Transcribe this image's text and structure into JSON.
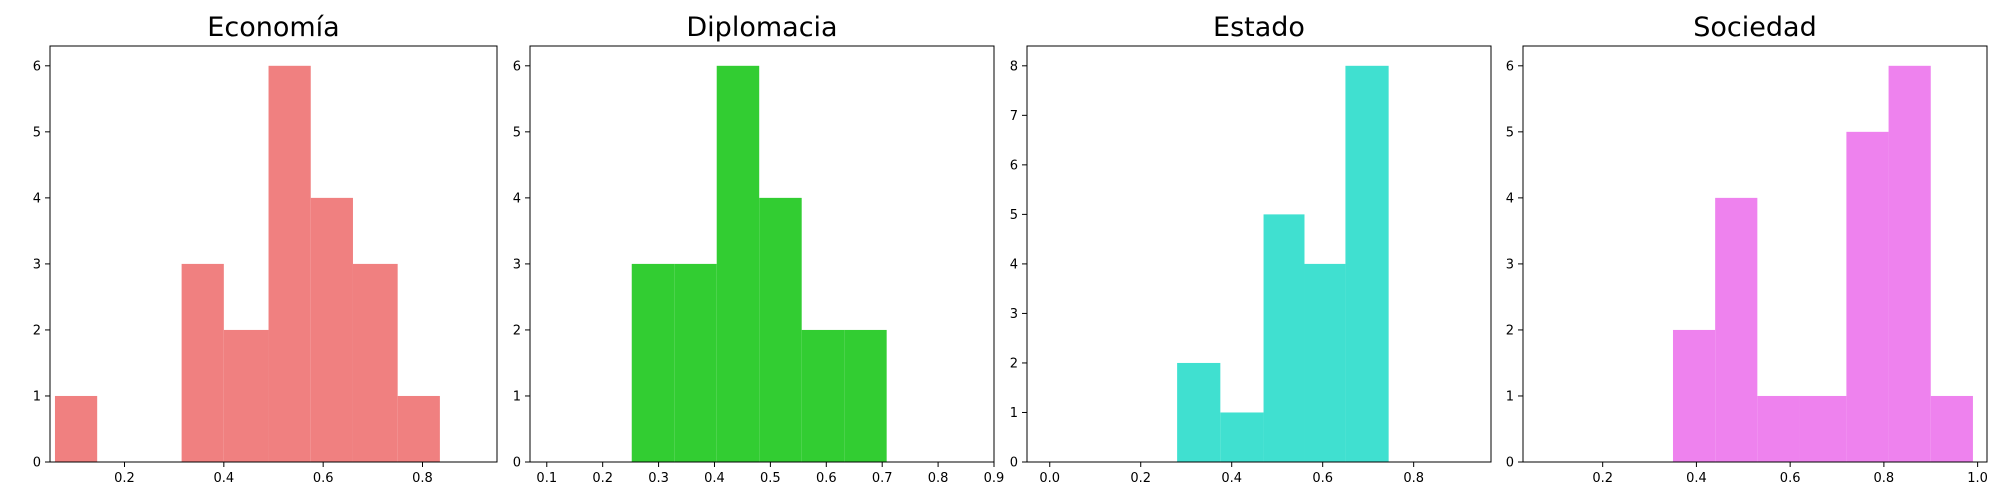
{
  "chart_data": [
    {
      "type": "bar",
      "title": "Economía",
      "color": "#f08080",
      "xlim": [
        0.05,
        0.95
      ],
      "ylim": [
        0,
        6.3
      ],
      "xticks": [
        0.2,
        0.4,
        0.6,
        0.8
      ],
      "yticks": [
        0,
        1,
        2,
        3,
        4,
        5,
        6
      ],
      "bins": [
        {
          "x0": 0.06,
          "x1": 0.145,
          "count": 1
        },
        {
          "x0": 0.145,
          "x1": 0.23,
          "count": 0
        },
        {
          "x0": 0.23,
          "x1": 0.315,
          "count": 0
        },
        {
          "x0": 0.315,
          "x1": 0.4,
          "count": 3
        },
        {
          "x0": 0.4,
          "x1": 0.49,
          "count": 2
        },
        {
          "x0": 0.49,
          "x1": 0.575,
          "count": 6
        },
        {
          "x0": 0.575,
          "x1": 0.66,
          "count": 4
        },
        {
          "x0": 0.66,
          "x1": 0.75,
          "count": 3
        },
        {
          "x0": 0.75,
          "x1": 0.835,
          "count": 1
        }
      ]
    },
    {
      "type": "bar",
      "title": "Diplomacia",
      "color": "#32cd32",
      "xlim": [
        0.07,
        0.9
      ],
      "ylim": [
        0,
        6.3
      ],
      "xticks": [
        0.1,
        0.2,
        0.3,
        0.4,
        0.5,
        0.6,
        0.7,
        0.8,
        0.9
      ],
      "yticks": [
        0,
        1,
        2,
        3,
        4,
        5,
        6
      ],
      "bins": [
        {
          "x0": 0.252,
          "x1": 0.328,
          "count": 3
        },
        {
          "x0": 0.328,
          "x1": 0.404,
          "count": 3
        },
        {
          "x0": 0.404,
          "x1": 0.48,
          "count": 6
        },
        {
          "x0": 0.48,
          "x1": 0.556,
          "count": 4
        },
        {
          "x0": 0.556,
          "x1": 0.632,
          "count": 2
        },
        {
          "x0": 0.632,
          "x1": 0.708,
          "count": 2
        }
      ]
    },
    {
      "type": "bar",
      "title": "Estado",
      "color": "#40e0d0",
      "xlim": [
        -0.05,
        0.97
      ],
      "ylim": [
        0,
        8.4
      ],
      "xticks": [
        0.0,
        0.2,
        0.4,
        0.6,
        0.8
      ],
      "yticks": [
        0,
        1,
        2,
        3,
        4,
        5,
        6,
        7,
        8
      ],
      "bins": [
        {
          "x0": 0.28,
          "x1": 0.375,
          "count": 2
        },
        {
          "x0": 0.375,
          "x1": 0.47,
          "count": 1
        },
        {
          "x0": 0.47,
          "x1": 0.56,
          "count": 5
        },
        {
          "x0": 0.56,
          "x1": 0.65,
          "count": 4
        },
        {
          "x0": 0.65,
          "x1": 0.745,
          "count": 8
        }
      ]
    },
    {
      "type": "bar",
      "title": "Sociedad",
      "color": "#ee82ee",
      "xlim": [
        0.03,
        1.02
      ],
      "ylim": [
        0,
        6.3
      ],
      "xticks": [
        0.2,
        0.4,
        0.6,
        0.8,
        1.0
      ],
      "yticks": [
        0,
        1,
        2,
        3,
        4,
        5,
        6
      ],
      "bins": [
        {
          "x0": 0.35,
          "x1": 0.44,
          "count": 2
        },
        {
          "x0": 0.44,
          "x1": 0.53,
          "count": 4
        },
        {
          "x0": 0.53,
          "x1": 0.62,
          "count": 1
        },
        {
          "x0": 0.62,
          "x1": 0.72,
          "count": 1
        },
        {
          "x0": 0.72,
          "x1": 0.81,
          "count": 5
        },
        {
          "x0": 0.81,
          "x1": 0.9,
          "count": 6
        },
        {
          "x0": 0.9,
          "x1": 0.99,
          "count": 1
        }
      ]
    }
  ]
}
